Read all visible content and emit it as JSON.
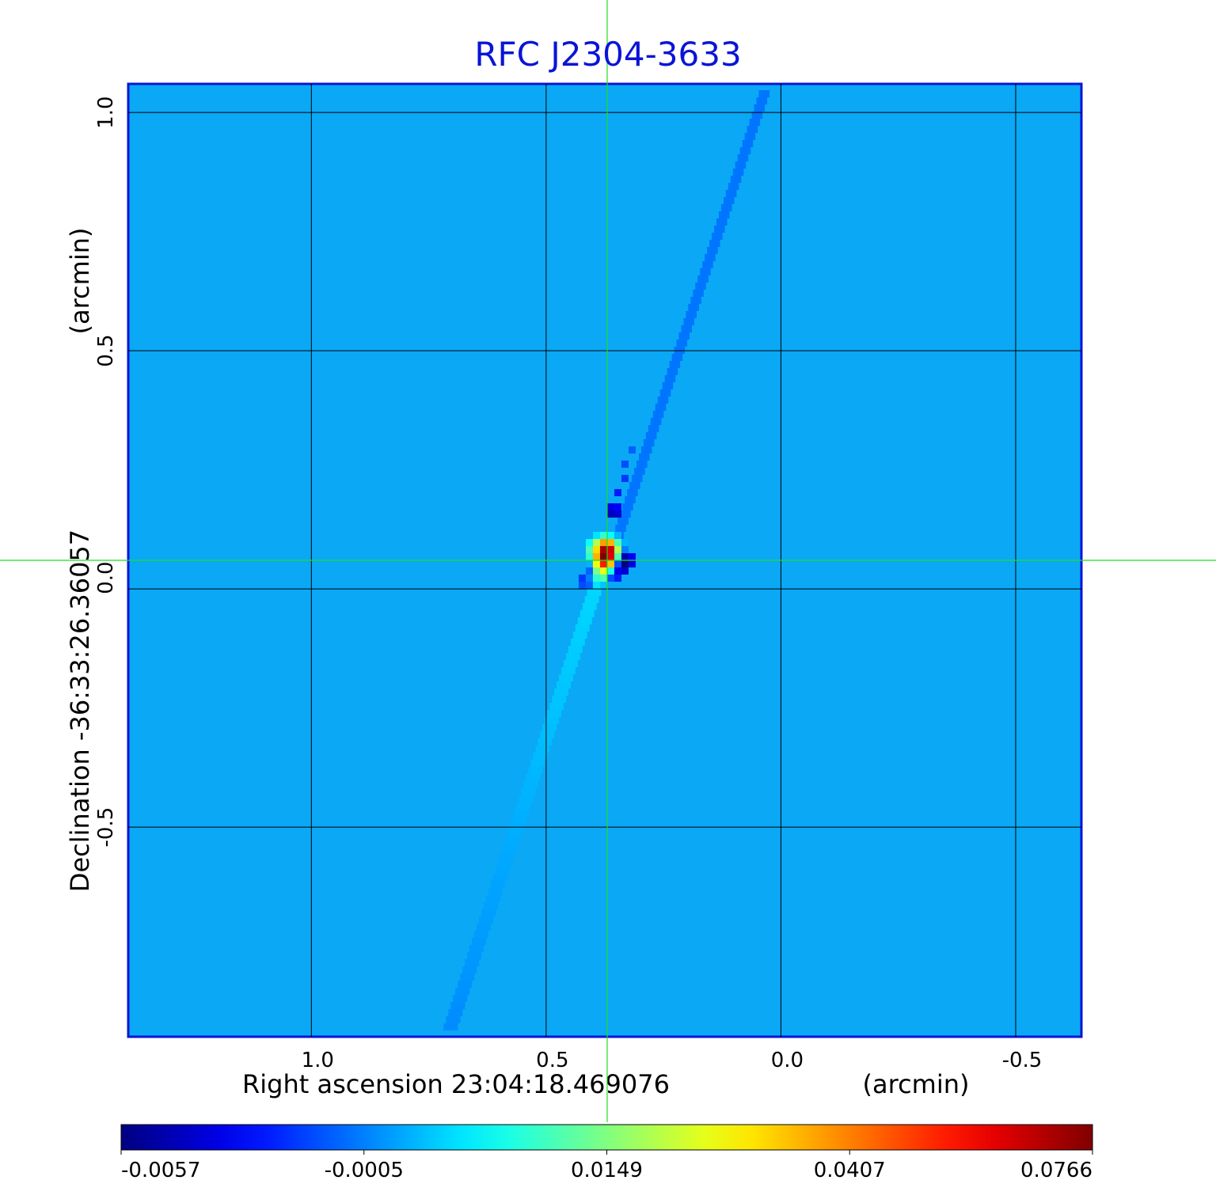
{
  "chart_data": {
    "type": "heatmap",
    "title": "RFC J2304-3633",
    "xlabel": "Right ascension  23:04:18.469076",
    "xunit": "(arcmin)",
    "ylabel": "Declination  -36:33:26.36057",
    "yunit": "(arcmin)",
    "x_ticks": [
      1.0,
      0.5,
      0.0,
      -0.5
    ],
    "x_tick_labels": [
      "1.0",
      "0.5",
      "0.0",
      "-0.5"
    ],
    "y_ticks": [
      1.0,
      0.5,
      0.0,
      -0.5
    ],
    "y_tick_labels": [
      "1.0",
      "0.5",
      "-0.5"
    ],
    "y_tick_label_zero": "0.0",
    "xlim": [
      1.39,
      -0.64
    ],
    "ylim": [
      -0.94,
      1.06
    ],
    "grid": true,
    "crosshair": {
      "x": 0.37,
      "y": 0.06
    },
    "colorbar": {
      "position": "bottom",
      "ticks": [
        -0.0057,
        -0.0005,
        0.0149,
        0.0407,
        0.0766
      ],
      "tick_labels": [
        "-0.0057",
        "-0.0005",
        "0.0149",
        "0.0407",
        "0.0766"
      ],
      "colormap": "jet"
    },
    "features": [
      {
        "kind": "peak",
        "x": 0.37,
        "y": 0.06,
        "value": 0.0766
      },
      {
        "kind": "minimum",
        "x": 0.32,
        "y": 0.06,
        "value": -0.0057
      },
      {
        "kind": "negative-lobe",
        "x": 0.34,
        "y": 0.19,
        "value": -0.004
      }
    ],
    "colors": {
      "background_field": "#0aa8f5",
      "frame": "#0a14d6",
      "grid": "#000000",
      "crosshair": "#22dd22",
      "title": "#0a14d6"
    }
  }
}
